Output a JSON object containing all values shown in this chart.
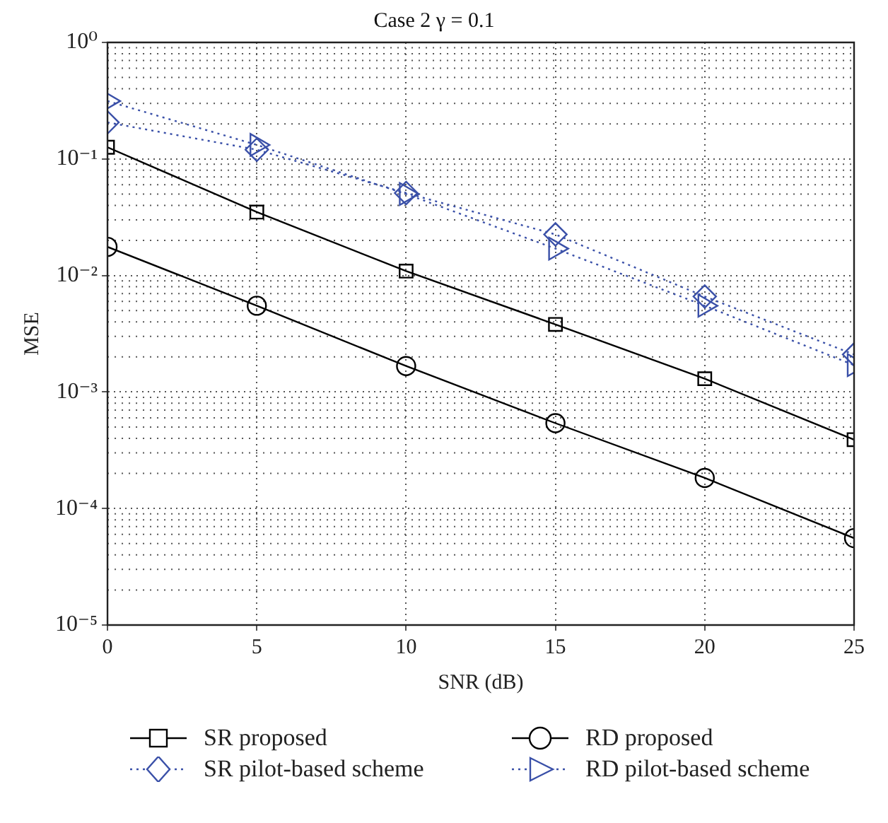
{
  "chart_data": {
    "type": "line",
    "title": "Case 2 γ = 0.1",
    "xlabel": "SNR (dB)",
    "ylabel": "MSE",
    "x": [
      0,
      5,
      10,
      15,
      20,
      25
    ],
    "series": [
      {
        "name": "SR proposed",
        "color": "#000000",
        "marker": "square",
        "line_style": "solid",
        "values": [
          0.126,
          0.035,
          0.0109,
          0.0038,
          0.0013,
          0.00039
        ]
      },
      {
        "name": "SR pilot-based scheme",
        "color": "#3a50a8",
        "marker": "diamond",
        "line_style": "dotted",
        "values": [
          0.206,
          0.12,
          0.051,
          0.0225,
          0.0066,
          0.0021
        ]
      },
      {
        "name": "RD proposed",
        "color": "#000000",
        "marker": "circle",
        "line_style": "solid",
        "values": [
          0.0176,
          0.0055,
          0.00167,
          0.00054,
          0.000183,
          5.57e-05
        ]
      },
      {
        "name": "RD pilot-based scheme",
        "color": "#3a50a8",
        "marker": "triangle",
        "line_style": "dotted",
        "values": [
          0.314,
          0.132,
          0.05,
          0.017,
          0.0055,
          0.0017
        ]
      }
    ],
    "xlim": [
      0,
      25
    ],
    "xticks": [
      0,
      5,
      10,
      15,
      20,
      25
    ],
    "ylim": [
      1e-05,
      1
    ],
    "yticks": [
      {
        "value": 1e-05,
        "label": "10⁻⁵"
      },
      {
        "value": 0.0001,
        "label": "10⁻⁴"
      },
      {
        "value": 0.001,
        "label": "10⁻³"
      },
      {
        "value": 0.01,
        "label": "10⁻²"
      },
      {
        "value": 0.1,
        "label": "10⁻¹"
      },
      {
        "value": 1,
        "label": "10⁰"
      }
    ],
    "log": "y",
    "grid": true,
    "legend": "bottom"
  }
}
